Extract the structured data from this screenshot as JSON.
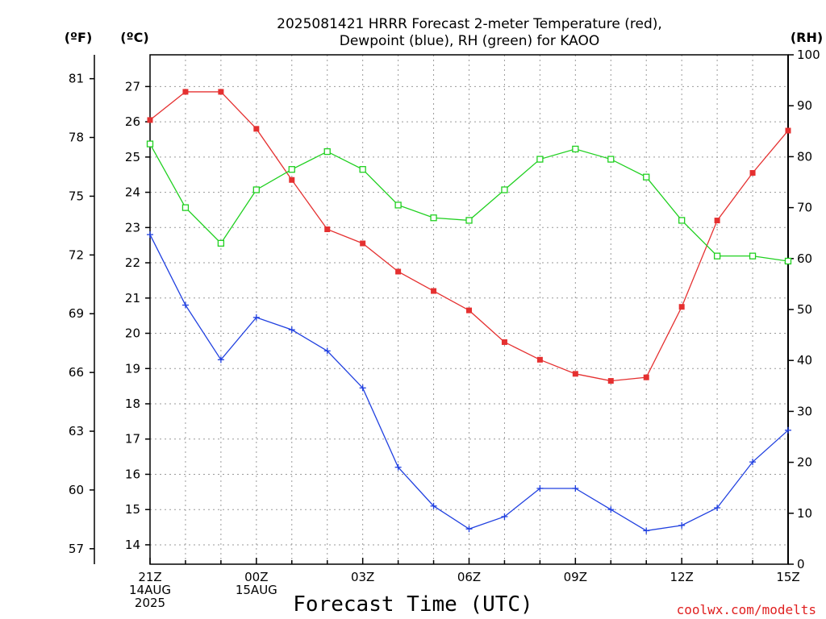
{
  "title_line1": "2025081421 HRRR Forecast 2-meter Temperature (red),",
  "title_line2": "Dewpoint (blue), RH (green) for KAOO",
  "unit_f": "(ºF)",
  "unit_c": "(ºC)",
  "unit_rh": "(RH)",
  "credit": "coolwx.com/modelts",
  "chart_data": {
    "type": "line",
    "title": "2025081421 HRRR Forecast 2-meter Temperature (red), Dewpoint (blue), RH (green) for KAOO",
    "xlabel": "Forecast Time (UTC)",
    "x": [
      "21Z 14AUG 2025",
      "22Z",
      "23Z",
      "00Z 15AUG",
      "01Z",
      "02Z",
      "03Z",
      "04Z",
      "05Z",
      "06Z",
      "07Z",
      "08Z",
      "09Z",
      "10Z",
      "11Z",
      "12Z",
      "13Z",
      "14Z",
      "15Z"
    ],
    "x_ticks": [
      {
        "idx": 0,
        "lines": [
          "21Z",
          "14AUG",
          "2025"
        ]
      },
      {
        "idx": 3,
        "lines": [
          "00Z",
          "15AUG"
        ]
      },
      {
        "idx": 6,
        "lines": [
          "03Z"
        ]
      },
      {
        "idx": 9,
        "lines": [
          "06Z"
        ]
      },
      {
        "idx": 12,
        "lines": [
          "09Z"
        ]
      },
      {
        "idx": 15,
        "lines": [
          "12Z"
        ]
      },
      {
        "idx": 18,
        "lines": [
          "15Z"
        ]
      }
    ],
    "ylim_c": [
      13.45,
      27.9
    ],
    "yticks_c": [
      14,
      15,
      16,
      17,
      18,
      19,
      20,
      21,
      22,
      23,
      24,
      25,
      26,
      27
    ],
    "yticks_f": [
      57,
      60,
      63,
      66,
      69,
      72,
      75,
      78,
      81
    ],
    "ylim_rh": [
      0,
      100
    ],
    "yticks_rh": [
      0,
      10,
      20,
      30,
      40,
      50,
      60,
      70,
      80,
      90,
      100
    ],
    "grid": true,
    "series": [
      {
        "name": "Temperature",
        "axis": "c",
        "color": "#e53030",
        "marker": "filled-square",
        "values": [
          26.05,
          26.85,
          26.85,
          25.8,
          24.35,
          22.95,
          22.55,
          21.75,
          21.2,
          20.65,
          19.75,
          19.25,
          18.85,
          18.65,
          18.75,
          20.75,
          23.2,
          24.55,
          25.75
        ]
      },
      {
        "name": "Dewpoint",
        "axis": "c",
        "color": "#2040e0",
        "marker": "plus",
        "values": [
          22.8,
          20.8,
          19.25,
          20.45,
          20.1,
          19.5,
          18.45,
          16.2,
          15.1,
          14.45,
          14.8,
          15.6,
          15.6,
          15.0,
          14.4,
          14.55,
          15.05,
          16.35,
          17.25
        ]
      },
      {
        "name": "RH",
        "axis": "rh",
        "color": "#20d020",
        "marker": "open-square",
        "values": [
          82.5,
          70,
          63,
          73.5,
          77.5,
          81,
          77.5,
          70.5,
          68,
          67.5,
          73.5,
          79.5,
          81.5,
          79.5,
          76,
          67.5,
          60.5,
          60.5,
          59.5
        ]
      }
    ]
  }
}
